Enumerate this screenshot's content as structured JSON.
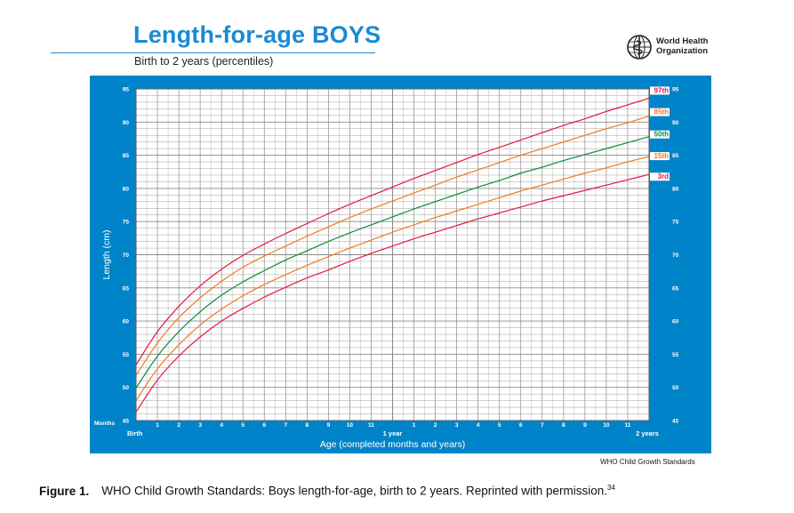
{
  "header": {
    "title": "Length-for-age BOYS",
    "subtitle": "Birth to 2 years (percentiles)",
    "org_name_line1": "World Health",
    "org_name_line2": "Organization"
  },
  "footer": {
    "source": "WHO Child Growth Standards",
    "caption_label": "Figure 1.",
    "caption_text": "WHO Child Growth Standards: Boys length-for-age, birth to 2 years. Reprinted with permission.",
    "caption_ref": "34"
  },
  "colors": {
    "panel": "#0084c9",
    "grid_bg": "#ffffff",
    "grid_line": "#8a8a8a",
    "p97": "#e5173f",
    "p85": "#f07b1c",
    "p50": "#0f8a3c",
    "p15": "#f07b1c",
    "p3": "#e5173f"
  },
  "chart_data": {
    "type": "line",
    "title": "Length-for-age BOYS",
    "xlabel": "Age (completed months and years)",
    "ylabel": "Length (cm)",
    "xlim": [
      0,
      24
    ],
    "ylim": [
      45,
      95
    ],
    "y_ticks": [
      45,
      50,
      55,
      60,
      65,
      70,
      75,
      80,
      85,
      90,
      95
    ],
    "x_ticks": [
      {
        "month": 0,
        "label": "Birth"
      },
      {
        "month": 1,
        "label": "1"
      },
      {
        "month": 2,
        "label": "2"
      },
      {
        "month": 3,
        "label": "3"
      },
      {
        "month": 4,
        "label": "4"
      },
      {
        "month": 5,
        "label": "5"
      },
      {
        "month": 6,
        "label": "6"
      },
      {
        "month": 7,
        "label": "7"
      },
      {
        "month": 8,
        "label": "8"
      },
      {
        "month": 9,
        "label": "9"
      },
      {
        "month": 10,
        "label": "10"
      },
      {
        "month": 11,
        "label": "11"
      },
      {
        "month": 12,
        "label": "1 year"
      },
      {
        "month": 13,
        "label": "1"
      },
      {
        "month": 14,
        "label": "2"
      },
      {
        "month": 15,
        "label": "3"
      },
      {
        "month": 16,
        "label": "4"
      },
      {
        "month": 17,
        "label": "5"
      },
      {
        "month": 18,
        "label": "6"
      },
      {
        "month": 19,
        "label": "7"
      },
      {
        "month": 20,
        "label": "8"
      },
      {
        "month": 21,
        "label": "9"
      },
      {
        "month": 22,
        "label": "10"
      },
      {
        "month": 23,
        "label": "11"
      },
      {
        "month": 24,
        "label": "2 years"
      }
    ],
    "x_axis_unit_label": "Months",
    "grid": true,
    "legend": "right end labels",
    "x": [
      0,
      1,
      2,
      3,
      4,
      5,
      6,
      7,
      8,
      9,
      10,
      11,
      12,
      13,
      14,
      15,
      16,
      17,
      18,
      19,
      20,
      21,
      22,
      23,
      24
    ],
    "series": [
      {
        "name": "97th",
        "color_key": "p97",
        "values": [
          53.4,
          58.4,
          62.2,
          65.3,
          67.8,
          69.9,
          71.6,
          73.2,
          74.7,
          76.2,
          77.6,
          78.9,
          80.2,
          81.5,
          82.7,
          83.9,
          85.1,
          86.2,
          87.3,
          88.4,
          89.5,
          90.5,
          91.6,
          92.6,
          93.6
        ]
      },
      {
        "name": "85th",
        "color_key": "p85",
        "values": [
          51.8,
          56.7,
          60.5,
          63.5,
          66.0,
          68.1,
          69.8,
          71.3,
          72.8,
          74.2,
          75.6,
          76.9,
          78.1,
          79.3,
          80.5,
          81.7,
          82.8,
          83.9,
          85.0,
          86.0,
          87.0,
          88.0,
          89.0,
          89.9,
          90.9
        ]
      },
      {
        "name": "50th",
        "color_key": "p50",
        "values": [
          49.9,
          54.7,
          58.4,
          61.4,
          63.9,
          65.9,
          67.6,
          69.2,
          70.6,
          72.0,
          73.3,
          74.5,
          75.7,
          76.9,
          78.0,
          79.1,
          80.2,
          81.2,
          82.3,
          83.2,
          84.2,
          85.1,
          86.0,
          86.9,
          87.8
        ]
      },
      {
        "name": "15th",
        "color_key": "p15",
        "values": [
          48.0,
          52.8,
          56.4,
          59.4,
          61.8,
          63.8,
          65.5,
          67.0,
          68.4,
          69.7,
          71.0,
          72.2,
          73.4,
          74.5,
          75.6,
          76.6,
          77.6,
          78.6,
          79.6,
          80.5,
          81.4,
          82.3,
          83.1,
          84.0,
          84.8
        ]
      },
      {
        "name": "3rd",
        "color_key": "p3",
        "values": [
          46.3,
          51.1,
          54.7,
          57.6,
          60.0,
          61.9,
          63.6,
          65.1,
          66.5,
          67.7,
          69.0,
          70.2,
          71.3,
          72.4,
          73.4,
          74.4,
          75.4,
          76.3,
          77.2,
          78.1,
          78.9,
          79.7,
          80.5,
          81.3,
          82.1
        ]
      }
    ]
  }
}
